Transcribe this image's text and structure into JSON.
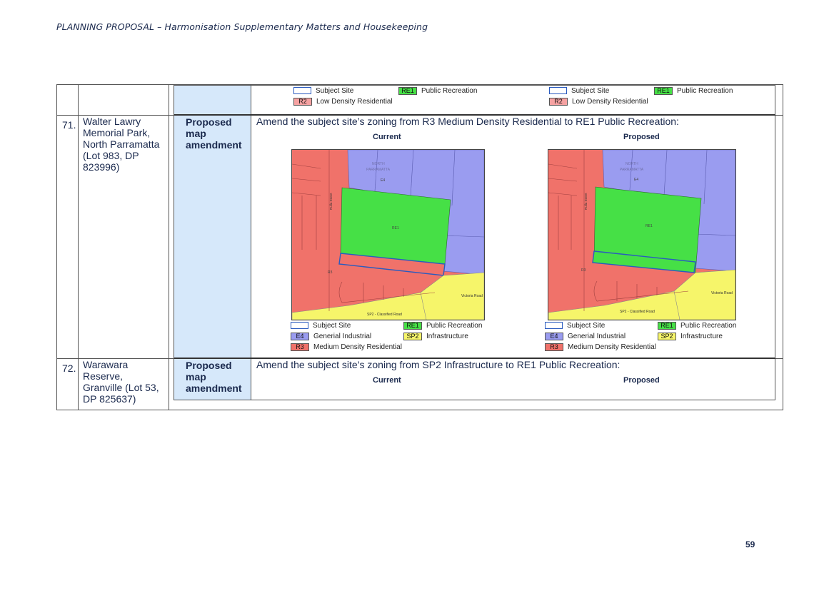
{
  "header": "PLANNING PROPOSAL – Harmonisation Supplementary Matters and Housekeeping",
  "page_number": "59",
  "top_legends": [
    {
      "site": "Subject Site",
      "re1_code": "RE1",
      "re1": "Public Recreation",
      "r2_code": "R2",
      "r2": "Low Density Residential"
    },
    {
      "site": "Subject Site",
      "re1_code": "RE1",
      "re1": "Public Recreation",
      "r2_code": "R2",
      "r2": "Low Density Residential"
    }
  ],
  "rows": [
    {
      "number": "71.",
      "site_lines": [
        "Walter Lawry",
        "Memorial Park,",
        "North Parramatta",
        "(Lot 983, DP",
        "823996)"
      ],
      "label_lines": [
        "Proposed",
        "map",
        "amendment"
      ],
      "description": "Amend the subject site’s zoning from R3 Medium Density Residential to RE1 Public Recreation:",
      "current_title": "Current",
      "proposed_title": "Proposed",
      "map_labels": {
        "north": "NORTH",
        "parramatta": "PARRAMATTA",
        "e4": "E4",
        "re1": "RE1",
        "r3": "R3",
        "street": "Rulla Street",
        "victoria": "Victoria Road",
        "sp2": "SP2 - Classified Road"
      },
      "legend": {
        "site": "Subject Site",
        "re1_code": "RE1",
        "re1": "Public Recreation",
        "e4_code": "E4",
        "e4": "Generial Industrial",
        "sp2_code": "SP2",
        "sp2": "Infrastructure",
        "r3_code": "R3",
        "r3": "Medium Density Residential"
      }
    },
    {
      "number": "72.",
      "site_lines": [
        "Warawara",
        "Reserve,",
        "Granville (Lot 53,",
        "DP 825637)"
      ],
      "label_lines": [
        "Proposed",
        "map",
        "amendment"
      ],
      "description": "Amend the subject site’s zoning from SP2 Infrastructure to RE1 Public Recreation:",
      "current_title": "Current",
      "proposed_title": "Proposed"
    }
  ],
  "colors": {
    "r3": "#f0726a",
    "re1": "#46e046",
    "e4": "#9a9cf0",
    "sp2": "#f6f56a",
    "subject": "#2a5bbf",
    "cell_blue": "#d6e8fa"
  }
}
